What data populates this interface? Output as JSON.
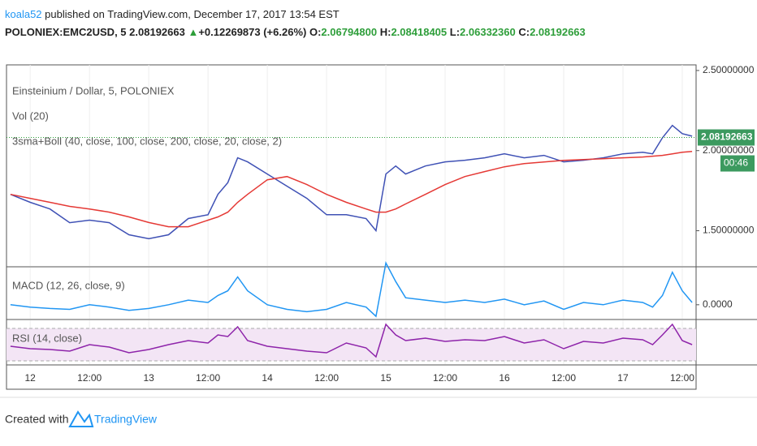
{
  "header": {
    "author": "koala52",
    "published": " published on TradingView.com, December 17, 2017 13:54 EST"
  },
  "symbol_line": {
    "symbol": "POLONIEX:EMC2USD, 5",
    "last": "2.08192663",
    "arrow": "▲",
    "change": "+0.12269873 (+6.26%)",
    "o_label": "O:",
    "o": "2.06794800",
    "h_label": "H:",
    "h": "2.08418405",
    "l_label": "L:",
    "l": "2.06332360",
    "c_label": "C:",
    "c": "2.08192663"
  },
  "chart_data": [
    {
      "type": "line",
      "legend": [
        "Einsteinium / Dollar, 5, POLONIEX",
        "Vol (20)",
        "3sma+Boll (40, close, 100, close, 200, close, 20, close, 2)"
      ],
      "x": [
        -4,
        0,
        4,
        8,
        12,
        16,
        20,
        24,
        28,
        32,
        36,
        38,
        40,
        42,
        44,
        48,
        52,
        56,
        60,
        64,
        68,
        70,
        72,
        74,
        76,
        80,
        84,
        88,
        92,
        96,
        100,
        104,
        108,
        112,
        116,
        120,
        124,
        126,
        128,
        130,
        132,
        134
      ],
      "xlim": [
        -4.8,
        134.8
      ],
      "xticks": [
        {
          "value": 0,
          "label": "12"
        },
        {
          "value": 12,
          "label": "12:00"
        },
        {
          "value": 24,
          "label": "13"
        },
        {
          "value": 36,
          "label": "12:00"
        },
        {
          "value": 48,
          "label": "14"
        },
        {
          "value": 60,
          "label": "12:00"
        },
        {
          "value": 72,
          "label": "15"
        },
        {
          "value": 84,
          "label": "12:00"
        },
        {
          "value": 96,
          "label": "16"
        },
        {
          "value": 108,
          "label": "12:00"
        },
        {
          "value": 120,
          "label": "17"
        },
        {
          "value": 132,
          "label": "12:00"
        }
      ],
      "ylim": [
        1.28,
        2.535
      ],
      "yticks": [
        {
          "value": 2.5,
          "label": "2.50000000"
        },
        {
          "value": 2,
          "label": "2.00000000"
        },
        {
          "value": 1.5,
          "label": "1.50000000"
        }
      ],
      "last_value": 2.08192663,
      "last_label": "2.08192663",
      "countdown": "00:46",
      "series": [
        {
          "color": "#3f51b5",
          "values": [
            1.727,
            1.677,
            1.636,
            1.55,
            1.566,
            1.55,
            1.475,
            1.45,
            1.475,
            1.576,
            1.6,
            1.727,
            1.8,
            1.955,
            1.93,
            1.854,
            1.778,
            1.702,
            1.6,
            1.6,
            1.576,
            1.5,
            1.854,
            1.904,
            1.854,
            1.904,
            1.93,
            1.94,
            1.955,
            1.98,
            1.955,
            1.97,
            1.93,
            1.94,
            1.955,
            1.98,
            1.99,
            1.98,
            2.08,
            2.157,
            2.106,
            2.09
          ]
        },
        {
          "color": "#e53935",
          "values": [
            1.727,
            1.702,
            1.677,
            1.652,
            1.636,
            1.616,
            1.586,
            1.551,
            1.525,
            1.525,
            1.566,
            1.586,
            1.616,
            1.677,
            1.727,
            1.818,
            1.838,
            1.788,
            1.727,
            1.677,
            1.636,
            1.616,
            1.616,
            1.636,
            1.667,
            1.727,
            1.788,
            1.838,
            1.869,
            1.899,
            1.919,
            1.929,
            1.939,
            1.944,
            1.949,
            1.955,
            1.96,
            1.965,
            1.97,
            1.98,
            1.99,
            1.995
          ]
        }
      ]
    },
    {
      "type": "line",
      "legend": [
        "MACD (12, 26, close, 9)"
      ],
      "ylim": [
        -0.03,
        0.08
      ],
      "yticks": [
        {
          "value": 0,
          "label": "0.0000"
        }
      ],
      "series": [
        {
          "color": "#2196f3",
          "values": [
            0,
            -0.005,
            -0.008,
            -0.01,
            0,
            -0.005,
            -0.012,
            -0.008,
            0,
            0.01,
            0.005,
            0.02,
            0.03,
            0.06,
            0.03,
            0,
            -0.01,
            -0.015,
            -0.01,
            0.005,
            -0.005,
            -0.025,
            0.09,
            0.05,
            0.015,
            0.01,
            0.005,
            0.01,
            0.005,
            0.012,
            0,
            0.008,
            -0.01,
            0.005,
            0,
            0.01,
            0.005,
            -0.005,
            0.02,
            0.07,
            0.03,
            0.005
          ]
        }
      ]
    },
    {
      "type": "line",
      "legend": [
        "RSI (14, close)"
      ],
      "ylim": [
        26,
        80
      ],
      "bands": [
        30,
        70
      ],
      "series": [
        {
          "color": "#8e24aa",
          "values": [
            48,
            45,
            44,
            42,
            50,
            47,
            40,
            44,
            50,
            55,
            52,
            62,
            60,
            72,
            55,
            48,
            45,
            42,
            40,
            52,
            46,
            35,
            75,
            62,
            55,
            58,
            54,
            56,
            55,
            60,
            52,
            56,
            45,
            54,
            52,
            58,
            56,
            50,
            62,
            75,
            55,
            50
          ]
        }
      ]
    }
  ],
  "footer": {
    "created": "Created with",
    "brand": "TradingView"
  }
}
